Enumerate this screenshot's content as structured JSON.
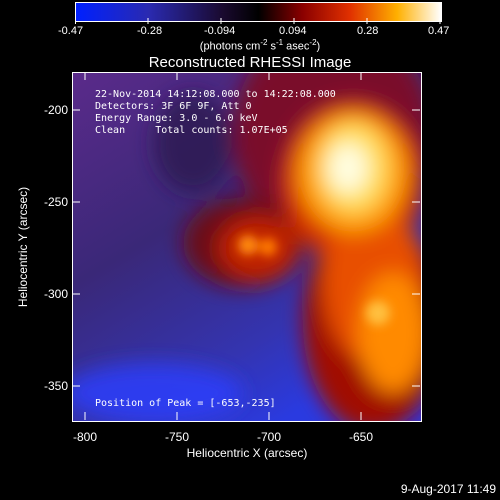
{
  "colorbar": {
    "ticks": [
      "-0.47",
      "-0.28",
      "-0.094",
      "0.094",
      "0.28",
      "0.47"
    ],
    "units_prefix": "(photons cm",
    "units_exp1": "-2",
    "units_mid1": " s",
    "units_exp2": "-1",
    "units_mid2": " asec",
    "units_exp3": "-2",
    "units_suffix": ")"
  },
  "title": "Reconstructed RHESSI Image",
  "info": {
    "line1": "22-Nov-2014 14:12:08.000 to 14:22:08.000",
    "line2": "Detectors: 3F 6F 9F, Att 0",
    "line3": "Energy Range: 3.0 - 6.0 keV",
    "line4": "Clean     Total counts: 1.07E+05"
  },
  "peak": "Position of Peak = [-653,-235]",
  "axes": {
    "xlabel": "Heliocentric X (arcsec)",
    "ylabel": "Heliocentric Y (arcsec)",
    "xticks": [
      "-800",
      "-750",
      "-700",
      "-650"
    ],
    "yticks": [
      "-200",
      "-250",
      "-300",
      "-350"
    ]
  },
  "datestamp": "9-Aug-2017 11:49",
  "colors": {
    "low": "#2a2aff",
    "mid": "#000000",
    "high": "#ffffff"
  }
}
